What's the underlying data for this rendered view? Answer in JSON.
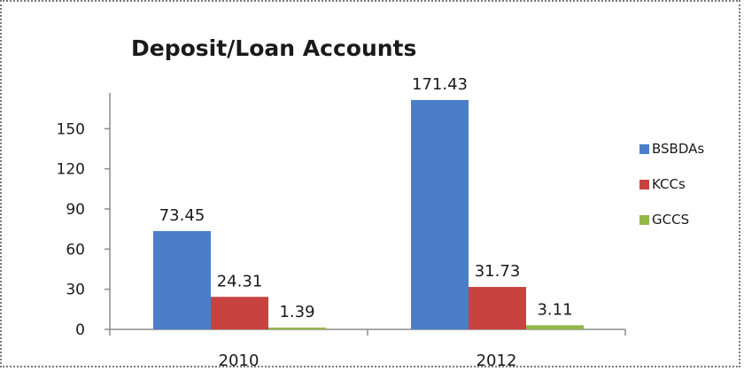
{
  "chart_data": {
    "type": "bar",
    "title": "Deposit/Loan Accounts",
    "categories": [
      "2010",
      "2012"
    ],
    "series": [
      {
        "name": "BSBDAs",
        "values": [
          73.45,
          171.43
        ],
        "labels": [
          "73.45",
          "171.43"
        ],
        "color": "#4a7ec9"
      },
      {
        "name": "KCCs",
        "values": [
          24.31,
          31.73
        ],
        "labels": [
          "24.31",
          "31.73"
        ],
        "color": "#c8423f"
      },
      {
        "name": "GCCS",
        "values": [
          1.39,
          3.11
        ],
        "labels": [
          "1.39",
          "3.11"
        ],
        "color": "#93b84a"
      }
    ],
    "yticks": [
      "0",
      "30",
      "60",
      "90",
      "120",
      "150"
    ],
    "ylim": [
      0,
      180
    ],
    "xlabel": "",
    "ylabel": "",
    "grid": false,
    "legend_position": "right"
  }
}
